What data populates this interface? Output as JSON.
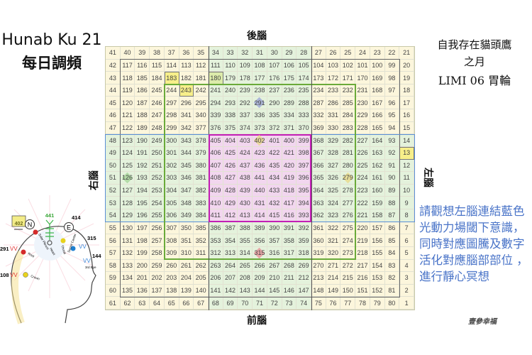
{
  "header": {
    "title": "Hunab Ku 21",
    "subtitle": "每日調頻"
  },
  "top_right": {
    "line1": "自我存在貓頭鷹",
    "line2": "之月",
    "line3": "LIMI 06 胃輪"
  },
  "brain_labels": {
    "top": "後腦",
    "bottom": "前腦",
    "left": "右腦",
    "right": "左腦"
  },
  "instruction": "請觀想左腦連結藍色光動力場閾下意識，同時對應圖騰及數字活化對應腦部部位 ，進行靜心冥想",
  "signature": "壹參幸福",
  "colors": {
    "yellow_zone": "#fcf6dc",
    "green_zone": "#e4f2dc",
    "center_zone": "#f2d6ef",
    "center_frame": "#c21fb5",
    "inner_frame": "#6aaa3a",
    "band_frame": "#5b8fd6",
    "instruction_text": "#4a74c8"
  },
  "diagram": {
    "labels": {
      "n": "N",
      "e": "E",
      "solar_plexus": "Solar Plexus",
      "heart": "Heart",
      "throat": "Throat",
      "secret_center": "Secret Center",
      "root": "Root",
      "third_eye": "3rd Eye",
      "crown": "Crown"
    },
    "numbers": {
      "box": "402",
      "top": "441",
      "e": "414",
      "r1": "315",
      "l1": "291",
      "r2": "144",
      "l2": "108"
    }
  },
  "highlights": [
    {
      "value": 183,
      "style": "box-yellow"
    },
    {
      "value": 243,
      "style": "box-yellow"
    },
    {
      "value": 180,
      "style": "box-green"
    },
    {
      "value": 13,
      "style": "box-yellow"
    },
    {
      "value": 291,
      "style": "dia-blue"
    },
    {
      "value": 402,
      "style": "dia-yellow"
    },
    {
      "value": 126,
      "style": "dia-green"
    },
    {
      "value": 279,
      "style": "dia-yellow"
    },
    {
      "value": 315,
      "style": "dia-red"
    }
  ],
  "grid": [
    [
      41,
      40,
      39,
      38,
      37,
      36,
      35,
      34,
      33,
      32,
      31,
      30,
      29,
      28,
      27,
      26,
      25,
      24,
      23,
      22,
      21
    ],
    [
      42,
      117,
      116,
      115,
      114,
      113,
      112,
      111,
      110,
      109,
      108,
      107,
      106,
      105,
      104,
      103,
      102,
      101,
      100,
      99,
      20
    ],
    [
      43,
      118,
      185,
      184,
      183,
      182,
      181,
      180,
      179,
      178,
      177,
      176,
      175,
      174,
      173,
      172,
      171,
      170,
      169,
      98,
      19
    ],
    [
      44,
      119,
      186,
      245,
      244,
      243,
      242,
      241,
      240,
      239,
      238,
      237,
      236,
      235,
      234,
      233,
      232,
      231,
      168,
      97,
      18
    ],
    [
      45,
      120,
      187,
      246,
      297,
      296,
      295,
      294,
      293,
      292,
      291,
      290,
      289,
      288,
      287,
      286,
      285,
      230,
      167,
      96,
      17
    ],
    [
      46,
      121,
      188,
      247,
      298,
      341,
      340,
      339,
      338,
      337,
      336,
      335,
      334,
      333,
      332,
      331,
      284,
      229,
      166,
      95,
      16
    ],
    [
      47,
      122,
      189,
      248,
      299,
      342,
      377,
      376,
      375,
      374,
      373,
      372,
      371,
      370,
      369,
      330,
      283,
      228,
      165,
      94,
      15
    ],
    [
      48,
      123,
      190,
      249,
      300,
      343,
      378,
      405,
      404,
      403,
      402,
      401,
      400,
      399,
      368,
      329,
      282,
      227,
      164,
      93,
      14
    ],
    [
      49,
      124,
      191,
      250,
      301,
      344,
      379,
      406,
      425,
      424,
      423,
      422,
      421,
      398,
      367,
      328,
      281,
      226,
      163,
      92,
      13
    ],
    [
      50,
      125,
      192,
      251,
      302,
      345,
      380,
      407,
      426,
      437,
      436,
      435,
      420,
      397,
      366,
      327,
      280,
      225,
      162,
      91,
      12
    ],
    [
      51,
      126,
      193,
      252,
      303,
      346,
      381,
      408,
      427,
      438,
      441,
      434,
      419,
      396,
      365,
      326,
      279,
      224,
      161,
      90,
      11
    ],
    [
      52,
      127,
      194,
      253,
      304,
      347,
      382,
      409,
      428,
      439,
      440,
      433,
      418,
      395,
      364,
      325,
      278,
      223,
      160,
      89,
      10
    ],
    [
      53,
      128,
      195,
      254,
      305,
      348,
      383,
      410,
      429,
      430,
      431,
      432,
      417,
      394,
      363,
      324,
      277,
      222,
      159,
      88,
      9
    ],
    [
      54,
      129,
      196,
      255,
      306,
      349,
      384,
      411,
      412,
      413,
      414,
      415,
      416,
      393,
      362,
      323,
      276,
      221,
      158,
      87,
      8
    ],
    [
      55,
      130,
      197,
      256,
      307,
      350,
      385,
      386,
      387,
      388,
      389,
      390,
      391,
      392,
      361,
      322,
      275,
      220,
      157,
      86,
      7
    ],
    [
      56,
      131,
      198,
      257,
      308,
      351,
      352,
      353,
      354,
      355,
      356,
      357,
      358,
      359,
      360,
      321,
      274,
      219,
      156,
      85,
      6
    ],
    [
      57,
      132,
      199,
      258,
      309,
      310,
      311,
      312,
      313,
      314,
      315,
      316,
      317,
      318,
      319,
      320,
      273,
      218,
      155,
      84,
      5
    ],
    [
      58,
      133,
      200,
      259,
      260,
      261,
      262,
      263,
      264,
      265,
      266,
      267,
      268,
      269,
      270,
      271,
      272,
      217,
      154,
      83,
      4
    ],
    [
      59,
      134,
      201,
      202,
      203,
      204,
      205,
      206,
      207,
      208,
      209,
      210,
      211,
      212,
      213,
      214,
      215,
      216,
      153,
      82,
      3
    ],
    [
      60,
      135,
      136,
      137,
      138,
      139,
      140,
      141,
      142,
      143,
      144,
      145,
      146,
      147,
      148,
      149,
      150,
      151,
      152,
      81,
      2
    ],
    [
      61,
      62,
      63,
      64,
      65,
      66,
      67,
      68,
      69,
      70,
      71,
      72,
      73,
      74,
      75,
      76,
      77,
      78,
      79,
      80,
      1
    ]
  ]
}
